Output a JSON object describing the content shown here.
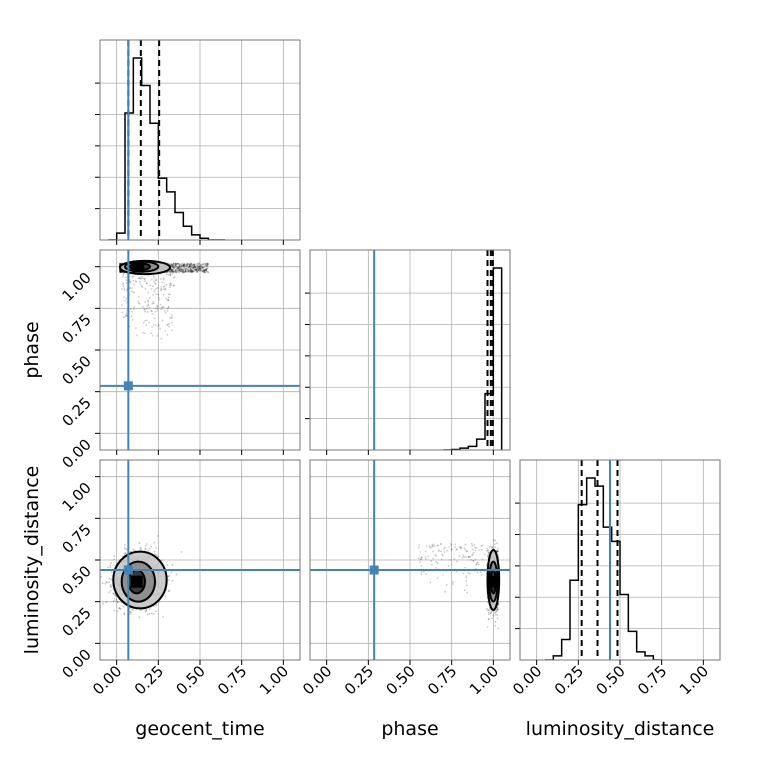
{
  "chart_data": {
    "type": "corner",
    "parameters": [
      "geocent_time",
      "phase",
      "luminosity_distance"
    ],
    "axis_range": [
      -0.1,
      1.1
    ],
    "tick_values": [
      0.0,
      0.25,
      0.5,
      0.75,
      1.0
    ],
    "tick_labels": [
      "0.00",
      "0.25",
      "0.50",
      "0.75",
      "1.00"
    ],
    "grid": true,
    "colors": {
      "truth": "#4682b4",
      "hist": "#000000",
      "quantiles": "#000000",
      "frame": "#777777",
      "grid": "#b0b0b0"
    },
    "truths": {
      "geocent_time": 0.07,
      "phase": 0.285,
      "luminosity_distance": 0.44
    },
    "histograms": {
      "geocent_time": {
        "bin_edges": [
          -0.05,
          0.0,
          0.05,
          0.1,
          0.15,
          0.2,
          0.25,
          0.3,
          0.35,
          0.4,
          0.45,
          0.5,
          0.55,
          0.6,
          0.65
        ],
        "values": [
          0.0,
          0.02,
          0.37,
          0.53,
          0.45,
          0.34,
          0.18,
          0.14,
          0.08,
          0.04,
          0.015,
          0.005,
          0.0,
          0.0
        ],
        "quantiles": [
          0.07,
          0.145,
          0.255
        ]
      },
      "phase": {
        "bin_edges": [
          0.7,
          0.75,
          0.8,
          0.85,
          0.9,
          0.95,
          1.0,
          1.05
        ],
        "values": [
          0.0,
          0.003,
          0.01,
          0.02,
          0.06,
          0.31,
          1.0
        ],
        "quantiles": [
          0.965,
          0.985,
          0.997
        ]
      },
      "luminosity_distance": {
        "bin_edges": [
          0.05,
          0.1,
          0.15,
          0.2,
          0.25,
          0.3,
          0.35,
          0.4,
          0.45,
          0.5,
          0.55,
          0.6,
          0.65,
          0.7,
          0.75
        ],
        "values": [
          0.0,
          0.02,
          0.1,
          0.39,
          0.76,
          0.89,
          0.85,
          0.65,
          0.58,
          0.32,
          0.14,
          0.04,
          0.02,
          0.0
        ],
        "quantiles": [
          0.27,
          0.365,
          0.485
        ]
      }
    },
    "scatter_panels": [
      {
        "x_param": "geocent_time",
        "y_param": "phase",
        "bulk": {
          "x_range": [
            0.02,
            0.55
          ],
          "y_range": [
            0.965,
            1.02
          ],
          "n": 1300
        },
        "tail": {
          "x_range": [
            0.03,
            0.35
          ],
          "y_range": [
            0.55,
            0.97
          ],
          "n": 220
        },
        "density_peak": [
          0.13,
          1.0
        ],
        "contours": [
          {
            "cx": 0.14,
            "cy": 1.0,
            "rx": 0.06,
            "ry": 0.02
          },
          {
            "cx": 0.15,
            "cy": 1.0,
            "rx": 0.1,
            "ry": 0.03
          },
          {
            "cx": 0.17,
            "cy": 0.995,
            "rx": 0.15,
            "ry": 0.04
          }
        ]
      },
      {
        "x_param": "geocent_time",
        "y_param": "luminosity_distance",
        "bulk": {
          "center": [
            0.13,
            0.38
          ],
          "spread": [
            0.13,
            0.14
          ],
          "n": 1600
        },
        "density_peak": [
          0.12,
          0.37
        ],
        "contours": [
          {
            "cx": 0.12,
            "cy": 0.37,
            "rx": 0.05,
            "ry": 0.07
          },
          {
            "cx": 0.13,
            "cy": 0.37,
            "rx": 0.1,
            "ry": 0.12
          },
          {
            "cx": 0.14,
            "cy": 0.38,
            "rx": 0.16,
            "ry": 0.17
          }
        ]
      },
      {
        "x_param": "phase",
        "y_param": "luminosity_distance",
        "bulk": {
          "x_range": [
            0.96,
            1.03
          ],
          "center_y": 0.38,
          "spread_y": 0.15,
          "n": 1300
        },
        "tail": {
          "x_range": [
            0.55,
            0.95
          ],
          "y_range": [
            0.3,
            0.6
          ],
          "n": 130
        },
        "density_peak": [
          1.0,
          0.37
        ],
        "contours": [
          {
            "cx": 1.0,
            "cy": 0.37,
            "rx": 0.015,
            "ry": 0.07
          },
          {
            "cx": 1.0,
            "cy": 0.37,
            "rx": 0.025,
            "ry": 0.12
          },
          {
            "cx": 1.0,
            "cy": 0.38,
            "rx": 0.035,
            "ry": 0.18
          }
        ]
      }
    ]
  }
}
